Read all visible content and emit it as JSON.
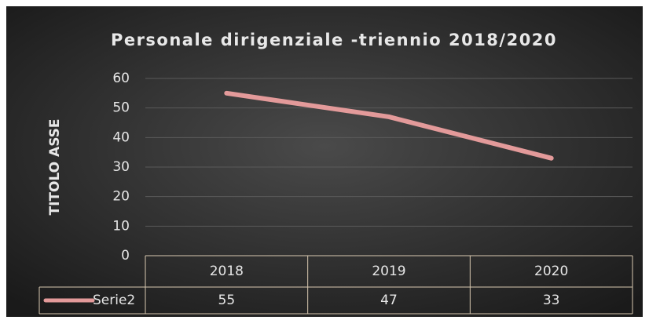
{
  "chart_data": {
    "type": "line",
    "title": "Personale dirigenziale -triennio 2018/2020",
    "y_label": "TITOLO ASSE",
    "categories": [
      "2018",
      "2019",
      "2020"
    ],
    "series": [
      {
        "name": "Serie2",
        "color": "#e39a9a",
        "values": [
          55,
          47,
          33
        ]
      }
    ],
    "ylim": [
      0,
      60
    ],
    "yticks": [
      0,
      10,
      20,
      30,
      40,
      50,
      60
    ],
    "grid": true,
    "data_table": true
  }
}
